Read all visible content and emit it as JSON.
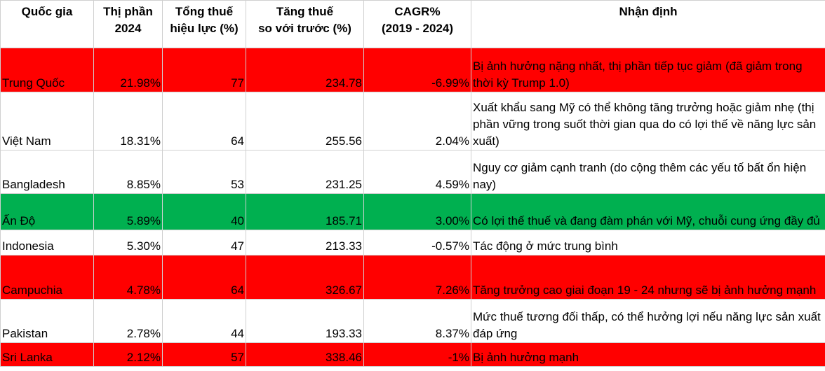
{
  "headers": [
    [
      "Quốc gia"
    ],
    [
      "Thị phần",
      "2024"
    ],
    [
      "Tổng thuế",
      "hiệu lực (%)"
    ],
    [
      "Tăng thuế",
      "so với trước (%)"
    ],
    [
      "CAGR%",
      "(2019 - 2024)"
    ],
    [
      "Nhận định"
    ]
  ],
  "rows": [
    {
      "country": "Trung Quốc",
      "share": "21.98%",
      "tax": "77",
      "increase": "234.78",
      "cagr": "-6.99%",
      "note": "Bị ảnh hưởng nặng nhất, thị phần tiếp tục giảm (đã giảm trong thời kỳ Trump 1.0)",
      "highlight": "red"
    },
    {
      "country": "Việt Nam",
      "share": "18.31%",
      "tax": "64",
      "increase": "255.56",
      "cagr": "2.04%",
      "note": "Xuất khẩu sang Mỹ có thể không tăng trưởng hoặc giảm nhẹ (thị phần vững trong suốt thời gian qua do có lợi thế về năng lực sản xuất)",
      "highlight": "none"
    },
    {
      "country": "Bangladesh",
      "share": "8.85%",
      "tax": "53",
      "increase": "231.25",
      "cagr": "4.59%",
      "note": "Nguy cơ giảm cạnh tranh (do cộng thêm các yếu tố bất ổn hiện nay)",
      "highlight": "none"
    },
    {
      "country": "Ấn Độ",
      "share": "5.89%",
      "tax": "40",
      "increase": "185.71",
      "cagr": "3.00%",
      "note": "Có lợi thế thuế và đang đàm phán với Mỹ, chuỗi cung ứng đầy đủ",
      "highlight": "green"
    },
    {
      "country": "Indonesia",
      "share": "5.30%",
      "tax": "47",
      "increase": "213.33",
      "cagr": "-0.57%",
      "note": "Tác động ở mức trung bình",
      "highlight": "none"
    },
    {
      "country": "Campuchia",
      "share": "4.78%",
      "tax": "64",
      "increase": "326.67",
      "cagr": "7.26%",
      "note": "Tăng trưởng cao giai đoạn 19 - 24 nhưng sẽ bị ảnh hưởng mạnh",
      "highlight": "red"
    },
    {
      "country": "Pakistan",
      "share": "2.78%",
      "tax": "44",
      "increase": "193.33",
      "cagr": "8.37%",
      "note": "Mức thuế tương đối thấp, có thể hưởng lợi nếu năng lực sản xuất đáp ứng",
      "highlight": "none"
    },
    {
      "country": "Sri Lanka",
      "share": "2.12%",
      "tax": "57",
      "increase": "338.46",
      "cagr": "-1%",
      "note": "Bị ảnh hưởng mạnh",
      "highlight": "red"
    }
  ],
  "colors": {
    "red": "#ff0000",
    "green": "#00b050",
    "grid": "#d0d0d0"
  }
}
